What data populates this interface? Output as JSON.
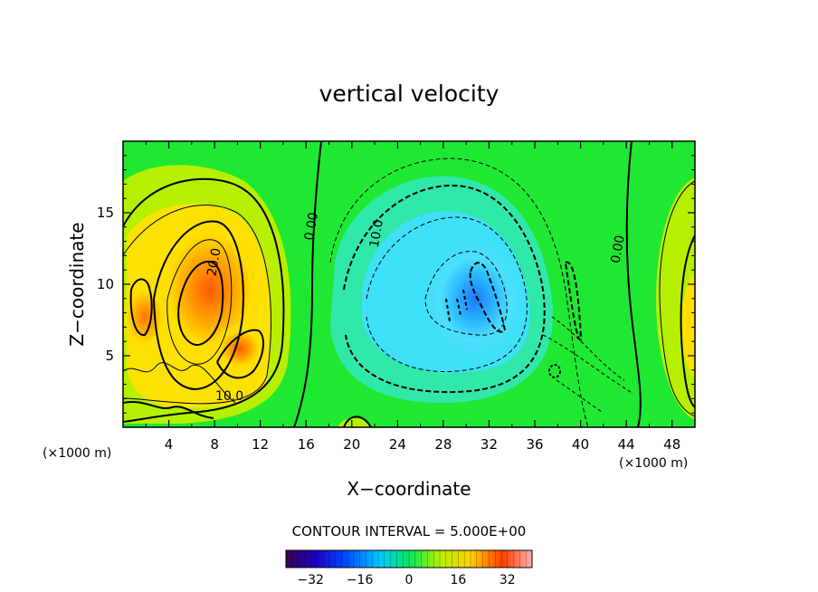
{
  "chart_data": {
    "type": "contour",
    "title": "vertical velocity",
    "xlabel": "X−coordinate",
    "ylabel": "Z−coordinate",
    "x_unit_label": "(×1000 m)",
    "y_unit_label": "(×1000 m)",
    "xlim": [
      0,
      50
    ],
    "ylim": [
      0,
      20
    ],
    "x_ticks": [
      "4",
      "8",
      "12",
      "16",
      "20",
      "24",
      "28",
      "32",
      "36",
      "40",
      "44",
      "48"
    ],
    "x_tick_values": [
      4,
      8,
      12,
      16,
      20,
      24,
      28,
      32,
      36,
      40,
      44,
      48
    ],
    "y_ticks": [
      "5",
      "10",
      "15"
    ],
    "y_tick_values": [
      5,
      10,
      15
    ],
    "contour_interval_label": "CONTOUR INTERVAL = 5.000E+00",
    "contour_labels": [
      {
        "text": "0.00",
        "x": 16.8,
        "z": 14.0
      },
      {
        "text": "10.0",
        "x": 22.5,
        "z": 13.5
      },
      {
        "text": "20.0",
        "x": 8.3,
        "z": 11.5
      },
      {
        "text": "10.0",
        "x": 9.3,
        "z": 1.9
      },
      {
        "text": "0.00",
        "x": 43.6,
        "z": 12.4
      }
    ],
    "colorbar": {
      "vmin": -40,
      "vmax": 40,
      "ticks": [
        "−32",
        "−16",
        "0",
        "16",
        "32"
      ],
      "tick_values": [
        -32,
        -16,
        0,
        16,
        32
      ]
    },
    "grid": false
  }
}
